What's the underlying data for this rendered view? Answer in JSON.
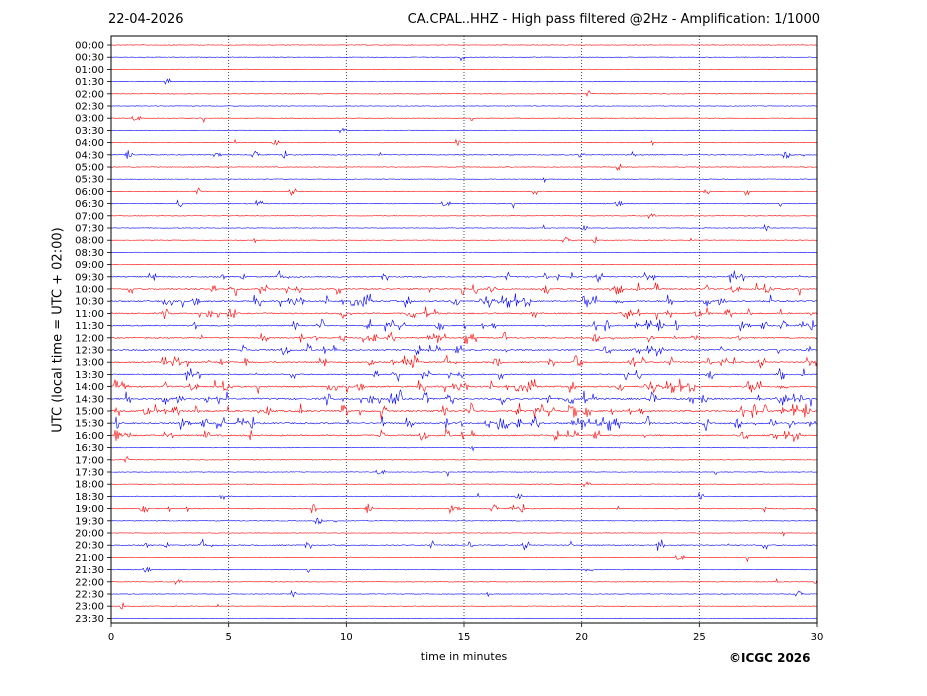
{
  "header": {
    "date": "22-04-2026",
    "title": "CA.CPAL..HHZ - High pass filtered @2Hz - Amplification: 1/1000"
  },
  "footer": {
    "credit": "©ICGC 2026"
  },
  "chart_data": {
    "type": "line",
    "title": "CA.CPAL..HHZ - High pass filtered @2Hz - Amplification: 1/1000",
    "xlabel": "time in minutes",
    "ylabel": "UTC (local time = UTC + 02:00)",
    "xlim": [
      0,
      30
    ],
    "x_ticks": [
      0,
      5,
      10,
      15,
      20,
      25,
      30
    ],
    "x_gridlines": [
      5,
      10,
      15,
      20,
      25
    ],
    "y_tick_labels": [
      "00:00",
      "00:30",
      "01:00",
      "01:30",
      "02:00",
      "02:30",
      "03:00",
      "03:30",
      "04:00",
      "04:30",
      "05:00",
      "05:30",
      "06:00",
      "06:30",
      "07:00",
      "07:30",
      "08:00",
      "08:30",
      "09:00",
      "09:30",
      "10:00",
      "10:30",
      "11:00",
      "11:30",
      "12:00",
      "12:30",
      "13:00",
      "13:30",
      "14:00",
      "14:30",
      "15:00",
      "15:30",
      "16:00",
      "16:30",
      "17:00",
      "17:30",
      "18:00",
      "18:30",
      "19:00",
      "19:30",
      "20:00",
      "20:30",
      "21:00",
      "21:30",
      "22:00",
      "22:30",
      "23:00",
      "23:30"
    ],
    "trace_colors": [
      "#ff0000",
      "#0000ff"
    ],
    "activity": [
      0.03,
      0.03,
      0.03,
      0.06,
      0.03,
      0.03,
      0.03,
      0.03,
      0.03,
      0.18,
      0.12,
      0.1,
      0.1,
      0.1,
      0.03,
      0.03,
      0.03,
      0.03,
      0.06,
      0.45,
      0.55,
      0.7,
      0.6,
      0.5,
      0.45,
      0.65,
      0.6,
      0.45,
      0.7,
      0.85,
      0.8,
      0.75,
      0.7,
      0.08,
      0.03,
      0.03,
      0.03,
      0.08,
      0.25,
      0.12,
      0.03,
      0.35,
      0.03,
      0.1,
      0.03,
      0.03,
      0.03,
      0.03
    ],
    "grid": "vertical-dotted"
  }
}
